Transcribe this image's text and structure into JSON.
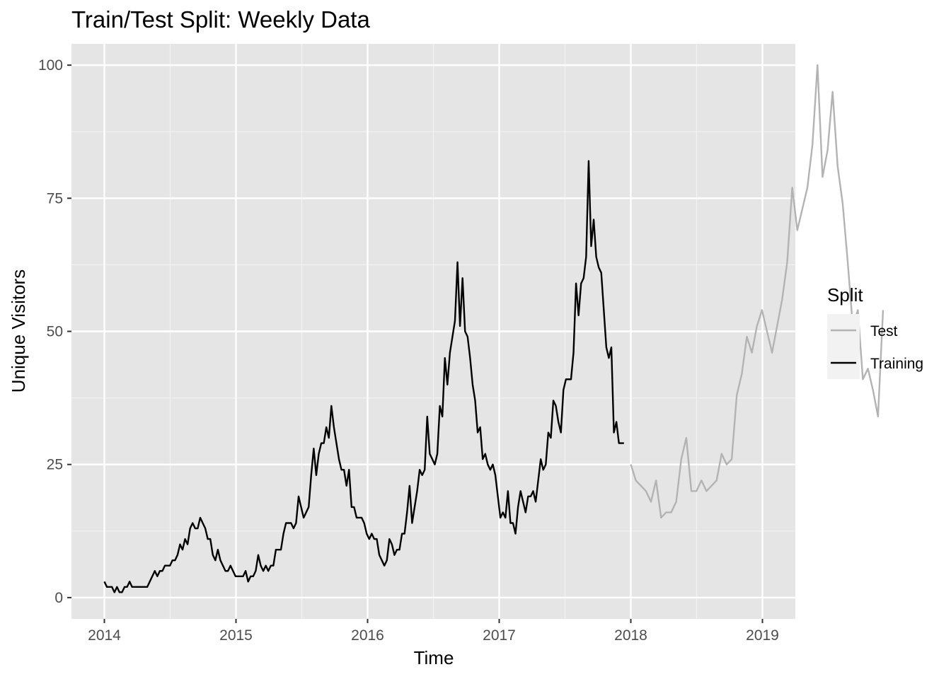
{
  "chart_data": {
    "type": "line",
    "title": "Train/Test Split: Weekly Data",
    "xlabel": "Time",
    "ylabel": "Unique Visitors",
    "xlim": [
      2013.75,
      2019.25
    ],
    "ylim": [
      -4,
      104
    ],
    "x_ticks": [
      2014,
      2015,
      2016,
      2017,
      2018,
      2019
    ],
    "x_tick_labels": [
      "2014",
      "2015",
      "2016",
      "2017",
      "2018",
      "2019"
    ],
    "y_ticks": [
      0,
      25,
      50,
      75,
      100
    ],
    "y_tick_labels": [
      "0",
      "25",
      "50",
      "75",
      "100"
    ],
    "grid": true,
    "legend": {
      "title": "Split",
      "position": "right",
      "entries": [
        "Test",
        "Training"
      ]
    },
    "series": [
      {
        "name": "Training",
        "color": "#000000",
        "start": 2014.0,
        "step_weeks": 1,
        "values": [
          3,
          2,
          2,
          2,
          1,
          2,
          1,
          1,
          2,
          2,
          3,
          2,
          2,
          2,
          2,
          2,
          2,
          2,
          3,
          4,
          5,
          4,
          5,
          5,
          6,
          6,
          6,
          7,
          7,
          8,
          10,
          9,
          11,
          10,
          13,
          14,
          13,
          13,
          15,
          14,
          13,
          11,
          11,
          8,
          7,
          9,
          7,
          6,
          5,
          5,
          6,
          5,
          4,
          4,
          4,
          4,
          5,
          3,
          4,
          4,
          5,
          8,
          6,
          5,
          6,
          5,
          6,
          6,
          9,
          9,
          9,
          12,
          14,
          14,
          14,
          13,
          14,
          19,
          17,
          15,
          16,
          17,
          23,
          28,
          23,
          27,
          29,
          29,
          32,
          30,
          36,
          32,
          29,
          26,
          24,
          24,
          21,
          24,
          17,
          17,
          15,
          15,
          15,
          14,
          12,
          11,
          12,
          11,
          11,
          8,
          7,
          6,
          7,
          11,
          10,
          8,
          9,
          9,
          12,
          12,
          16,
          21,
          14,
          17,
          20,
          24,
          23,
          24,
          34,
          27,
          26,
          25,
          27,
          36,
          34,
          45,
          40,
          46,
          49,
          52,
          63,
          51,
          60,
          50,
          49,
          45,
          40,
          37,
          31,
          32,
          26,
          27,
          25,
          24,
          25,
          23,
          19,
          15,
          16,
          15,
          20,
          14,
          14,
          12,
          17,
          20,
          18,
          16,
          19,
          19,
          20,
          18,
          22,
          26,
          24,
          25,
          31,
          30,
          37,
          36,
          33,
          31,
          39,
          41,
          41,
          41,
          46,
          59,
          53,
          59,
          60,
          64,
          82,
          66,
          71,
          64,
          62,
          61,
          54,
          47,
          45,
          47,
          31,
          33,
          29,
          29,
          29
        ]
      },
      {
        "name": "Test",
        "color": "#b3b3b3",
        "start": 2018.0,
        "step_weeks": 2,
        "values": [
          25,
          22,
          21,
          20,
          18,
          22,
          15,
          16,
          16,
          18,
          26,
          30,
          20,
          20,
          22,
          20,
          21,
          22,
          27,
          25,
          26,
          38,
          42,
          49,
          46,
          51,
          54,
          50,
          46,
          51,
          56,
          63,
          77,
          69,
          73,
          77,
          85,
          100,
          79,
          84,
          95,
          81,
          74,
          63,
          51,
          54,
          41,
          43,
          39,
          34,
          54
        ]
      }
    ]
  }
}
